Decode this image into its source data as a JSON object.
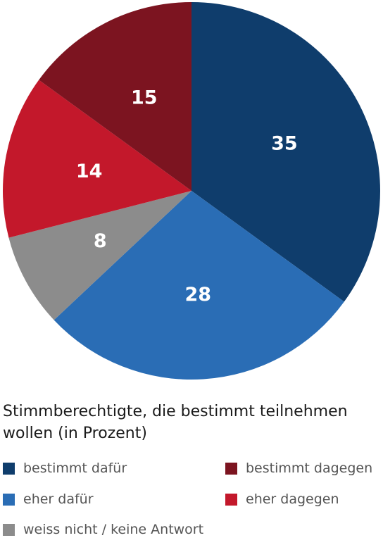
{
  "chart_data": {
    "type": "pie",
    "title": "Stimmberechtigte, die bestimmt teilnehmen wollen (in Prozent)",
    "slices": [
      {
        "name": "bestimmt dafür",
        "value": 35,
        "label": "35",
        "color": "#0f3d6c"
      },
      {
        "name": "eher dafür",
        "value": 28,
        "label": "28",
        "color": "#2a6db5"
      },
      {
        "name": "weiss nicht / keine Antwort",
        "value": 8,
        "label": "8",
        "color": "#8c8c8c"
      },
      {
        "name": "eher dagegen",
        "value": 14,
        "label": "14",
        "color": "#c3182b"
      },
      {
        "name": "bestimmt dagegen",
        "value": 15,
        "label": "15",
        "color": "#7c1420"
      }
    ],
    "legend": {
      "placement": "bottom",
      "entries": [
        {
          "label": "bestimmt dafür",
          "color": "#0f3d6c"
        },
        {
          "label": "bestimmt dagegen",
          "color": "#7c1420"
        },
        {
          "label": "eher dafür",
          "color": "#2a6db5"
        },
        {
          "label": "eher dagegen",
          "color": "#c3182b"
        },
        {
          "label": "weiss nicht / keine Antwort",
          "color": "#8c8c8c"
        }
      ]
    }
  }
}
